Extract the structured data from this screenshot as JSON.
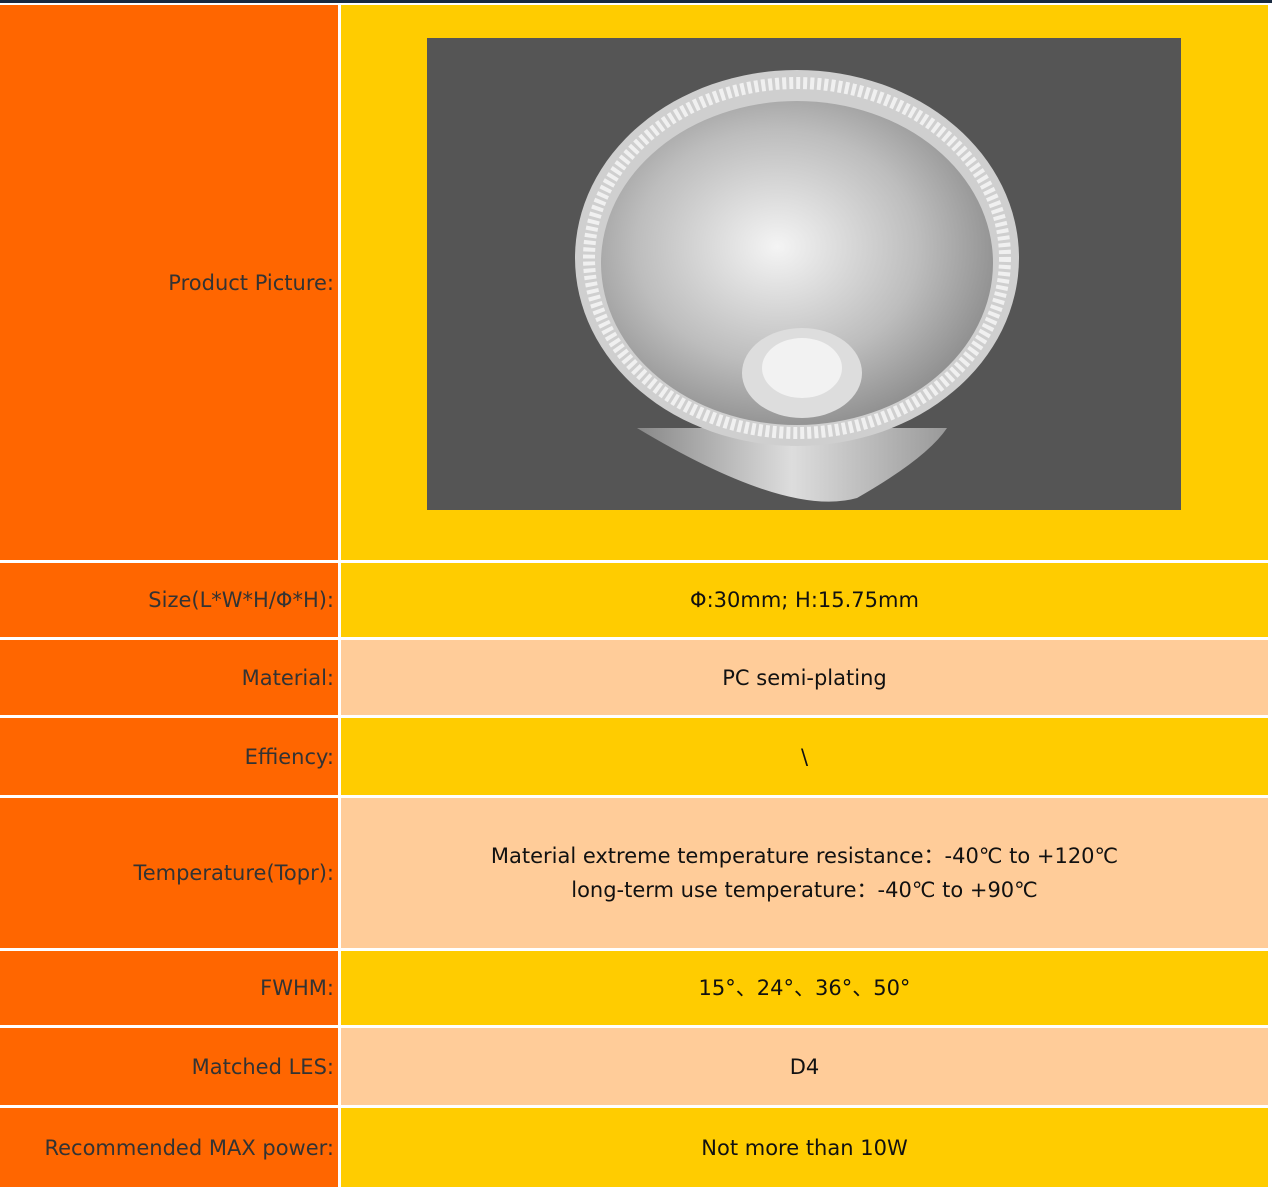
{
  "table": {
    "rows": [
      {
        "label": "Product Picture:"
      },
      {
        "label": "Size(L*W*H/Φ*H):",
        "value": [
          "Φ:30mm; H:15.75mm"
        ]
      },
      {
        "label": "Material:",
        "value": [
          "PC semi-plating"
        ]
      },
      {
        "label": "Effiency:",
        "value": [
          "\\"
        ]
      },
      {
        "label": "Temperature(Topr):",
        "value": [
          "Material extreme temperature resistance：-40℃ to +120℃",
          "long-term use temperature：-40℃ to +90℃"
        ]
      },
      {
        "label": "FWHM:",
        "value": [
          "15°、24°、36°、50°"
        ]
      },
      {
        "label": "Matched LES:",
        "value": [
          "D4"
        ]
      },
      {
        "label": "Recommended MAX power:",
        "value": [
          "Not more than 10W"
        ]
      }
    ]
  }
}
